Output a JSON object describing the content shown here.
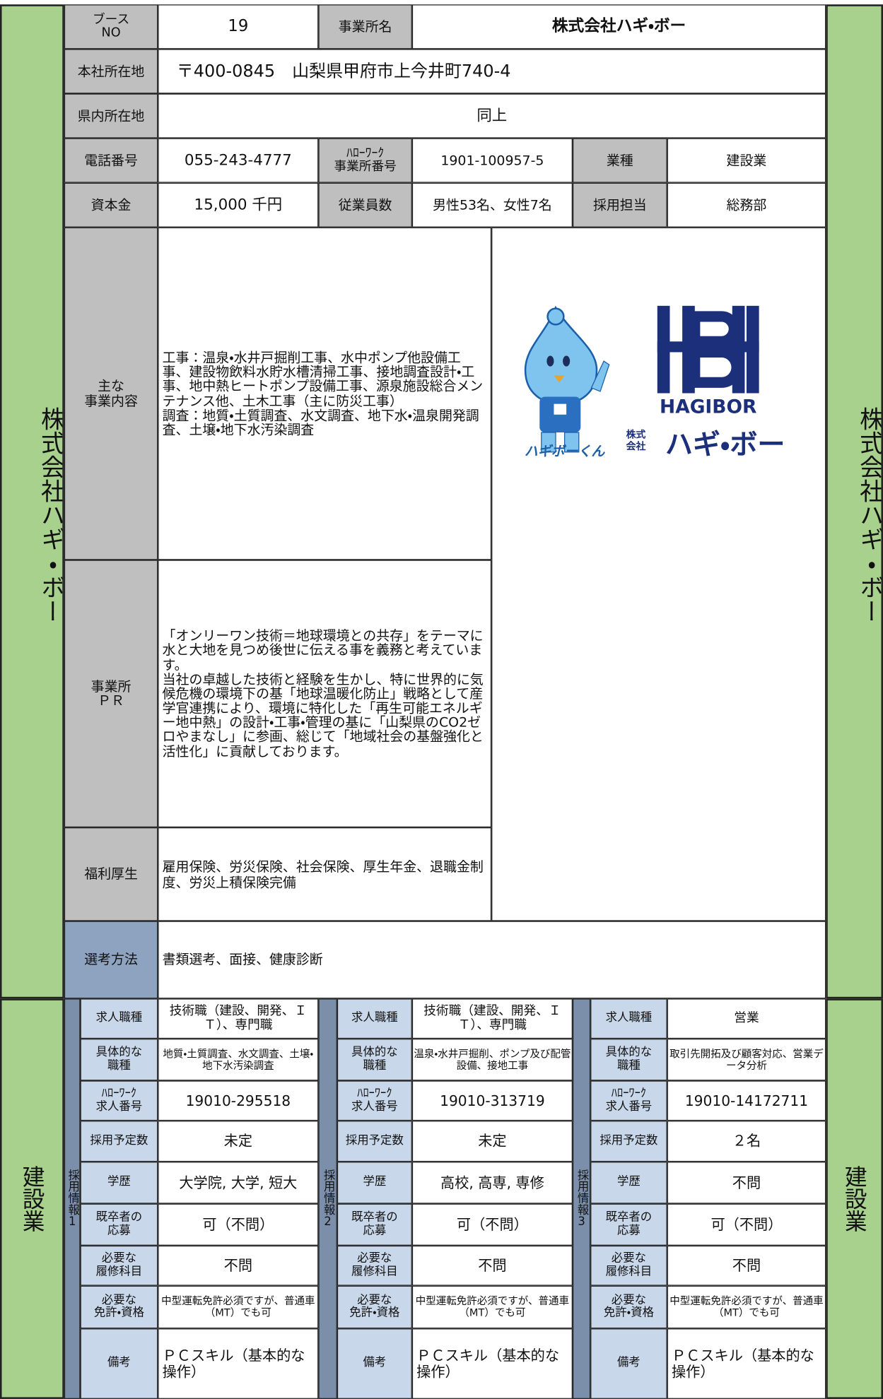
{
  "side_label": "株式会社ハギ・ボー",
  "side_category": "建設業",
  "company": {
    "booth_no": {
      "label": "ブース\nNO",
      "value": "19"
    },
    "name": {
      "label": "事業所名",
      "value": "株式会社ハギ・ボー"
    },
    "head_office": {
      "label": "本社所在地",
      "value": "〒400-0845　山梨県甲府市上今井町740-4"
    },
    "local_office": {
      "label": "県内所在地",
      "value": "同上"
    },
    "phone": {
      "label": "電話番号",
      "value": "055-243-4777"
    },
    "hw_office_no": {
      "label": "ﾊﾛｰﾜｰｸ\n事業所番号",
      "value": "1901-100957-5"
    },
    "industry": {
      "label": "業種",
      "value": "建設業"
    },
    "capital": {
      "label": "資本金",
      "value": "15,000 千円"
    },
    "employees": {
      "label": "従業員数",
      "value": "男性53名、女性7名"
    },
    "recruiter": {
      "label": "採用担当",
      "value": "総務部"
    },
    "business": {
      "label": "主な\n事業内容",
      "value": "工事：温泉・水井戸掘削工事、水中ポンプ他設備工事、建設物飲料水貯水槽清掃工事、接地調査設計・工事、地中熱ヒートポンプ設備工事、源泉施設総合メンテナンス他、土木工事（主に防災工事）\n調査：地質・土質調査、水文調査、地下水・温泉開発調査、土壌・地下水汚染調査"
    },
    "pr": {
      "label": "事業所\nＰＲ",
      "value": "「オンリーワン技術＝地球環境との共存」をテーマに水と大地を見つめ後世に伝える事を義務と考えています。\n当社の卓越した技術と経験を生かし、特に世界的に気候危機の環境下の基「地球温暖化防止」戦略として産学官連携により、環境に特化した「再生可能エネルギー地中熱」の設計・工事・管理の基に「山梨県のCO2ゼロやまなし」に参画、総じて「地域社会の基盤強化と活性化」に貢献しております。"
    },
    "welfare": {
      "label": "福利厚生",
      "value": "雇用保険、労災保険、社会保険、厚生年金、退職金制度、労災上積保険完備"
    },
    "selection": {
      "label": "選考方法",
      "value": "書類選考、面接、健康診断"
    }
  },
  "logo": {
    "brand": "HAGIBOR",
    "mascot": "ハギボーくん",
    "company_prefix": "株式\n会社",
    "company": "ハギ・ボー"
  },
  "job_labels": [
    "求人職種",
    "具体的な\n職種",
    "ﾊﾛｰﾜｰｸ\n求人番号",
    "採用予定数",
    "学歴",
    "既卒者の\n応募",
    "必要な\n履修科目",
    "必要な\n免許・資格",
    "備考"
  ],
  "jobs": [
    {
      "side": "採用情報1",
      "values": [
        "技術職（建設、開発、ＩＴ）、専門職",
        "地質・土質調査、水文調査、土壌・地下水汚染調査",
        "19010-295518",
        "未定",
        "大学院, 大学, 短大",
        "可（不問）",
        "不問",
        "中型運転免許必須ですが、普通車（MT）でも可",
        "ＰＣスキル（基本的な操作）"
      ]
    },
    {
      "side": "採用情報2",
      "values": [
        "技術職（建設、開発、ＩＴ）、専門職",
        "温泉・水井戸掘削、ポンプ及び配管設備、接地工事",
        "19010-313719",
        "未定",
        "高校, 高専, 専修",
        "可（不問）",
        "不問",
        "中型運転免許必須ですが、普通車（MT）でも可",
        "ＰＣスキル（基本的な操作）"
      ]
    },
    {
      "side": "採用情報3",
      "values": [
        "営業",
        "取引先開拓及び顧客対応、営業データ分析",
        "19010-14172711",
        "２名",
        "不問",
        "可（不問）",
        "不問",
        "中型運転免許必須ですが、普通車（MT）でも可",
        "ＰＣスキル（基本的な操作）"
      ]
    }
  ]
}
